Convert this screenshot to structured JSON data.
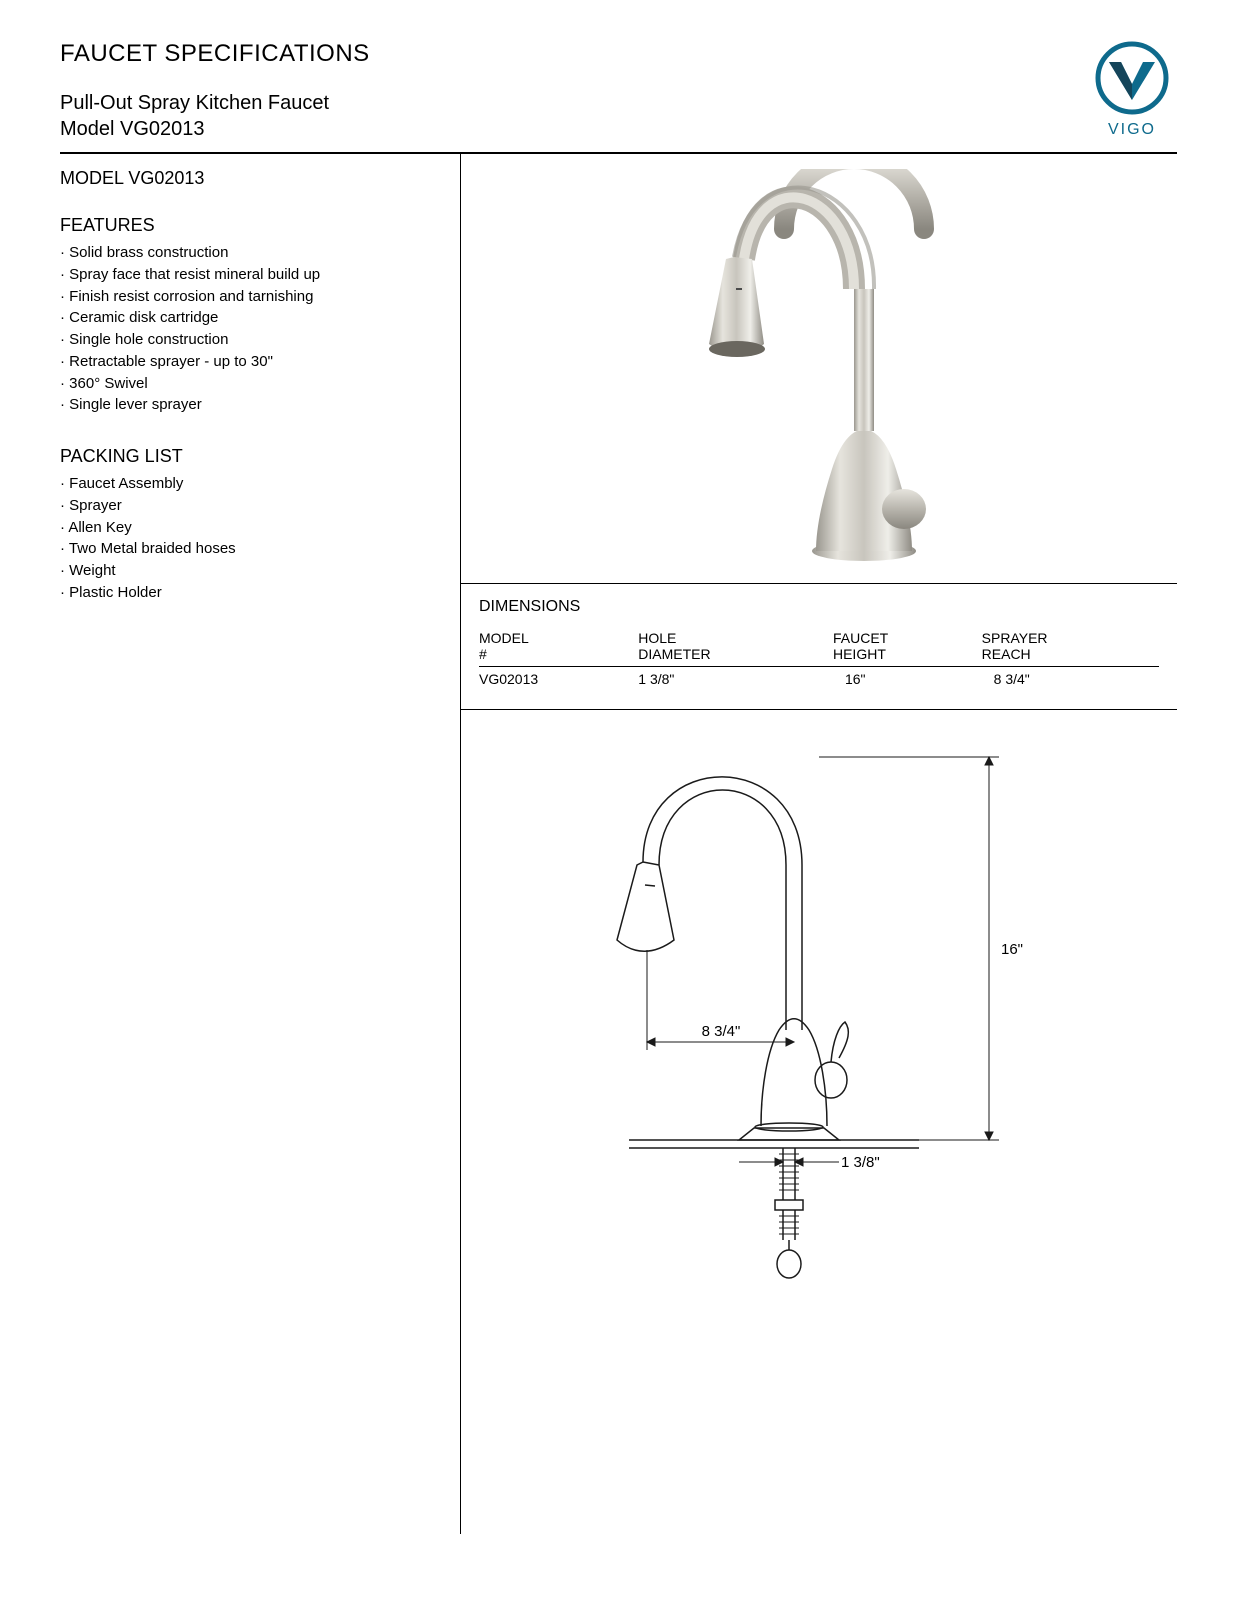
{
  "brand": "VIGO",
  "logo_colors": {
    "ring": "#0e6a8c",
    "v_fill": "#0e6a8c",
    "text": "#0e6a8c"
  },
  "title": "FAUCET SPECIFICATIONS",
  "product_name": "Pull-Out Spray Kitchen Faucet",
  "model_label": "Model VG02013",
  "model_heading": "MODEL VG02013",
  "features_heading": "FEATURES",
  "features": [
    "Solid brass construction",
    "Spray face that resist mineral build up",
    "Finish resist corrosion and tarnishing",
    "Ceramic disk cartridge",
    "Single hole construction",
    "Retractable sprayer - up to 30\"",
    "360° Swivel",
    "Single lever sprayer"
  ],
  "packing_heading": "PACKING LIST",
  "packing": [
    "Faucet Assembly",
    "Sprayer",
    "Allen Key",
    "Two Metal braided hoses",
    "Weight",
    "Plastic Holder"
  ],
  "dimensions_heading": "DIMENSIONS",
  "dims_table": {
    "columns": [
      "MODEL #",
      "HOLE DIAMETER",
      "FAUCET HEIGHT",
      "SPRAYER REACH"
    ],
    "rows": [
      [
        "VG02013",
        "1 3/8\"",
        "16\"",
        "8 3/4\""
      ]
    ]
  },
  "diagram_labels": {
    "height": "16\"",
    "reach": "8 3/4\"",
    "hole": "1 3/8\""
  },
  "colors": {
    "text": "#000000",
    "border": "#000000",
    "faucet_light": "#d8d6d0",
    "faucet_mid": "#b8b5ad",
    "faucet_dark": "#8a877f",
    "line": "#1a1a1a"
  }
}
